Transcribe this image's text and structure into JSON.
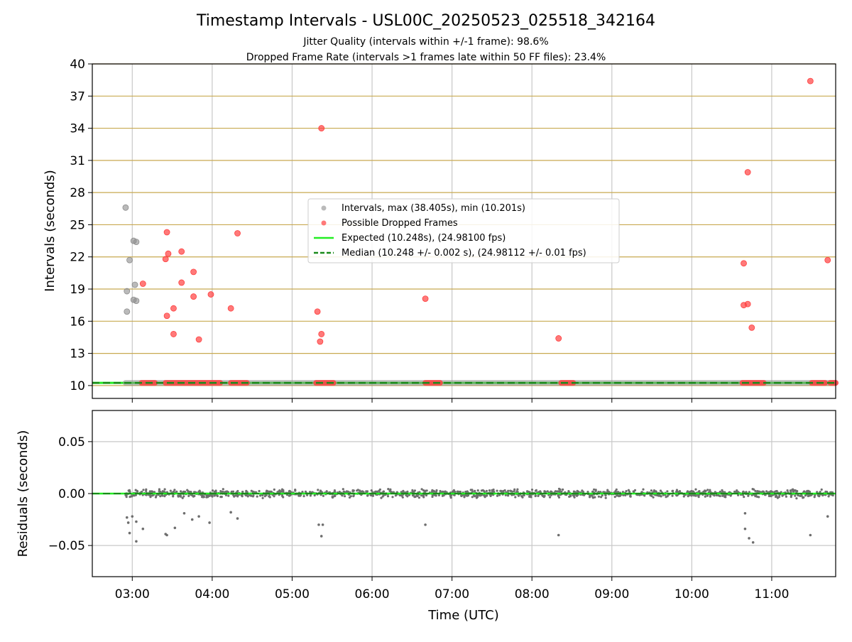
{
  "figure": {
    "title": "Timestamp Intervals - USL00C_20250523_025518_342164",
    "subtitle_1": "Jitter Quality (intervals within +/-1 frame): 98.6%",
    "subtitle_2": "Dropped Frame Rate (intervals >1 frames late within 50 FF files): 23.4%"
  },
  "colors": {
    "gray_points": "#8c8c8c",
    "red_points": "#ff4040",
    "expected_line": "#22ee22",
    "median_line": "#1a8a1a",
    "gold_grid": "#c8a951",
    "gray_grid": "#c8c8c8",
    "residual_points": "#6e6e6e"
  },
  "chart_data": [
    {
      "type": "scatter",
      "ylabel": "Intervals (seconds)",
      "xlim": [
        "02:30",
        "11:48"
      ],
      "ylim": [
        8.8,
        40
      ],
      "y_ticks": [
        "10",
        "13",
        "16",
        "19",
        "22",
        "25",
        "28",
        "31",
        "34",
        "37",
        "40"
      ],
      "grid": true,
      "legend_position": "center",
      "legend": [
        "Intervals, max (38.405s), min (10.201s)",
        "Possible Dropped Frames",
        "Expected (10.248s), (24.98100 fps)",
        "Median (10.248 +/- 0.002 s), (24.98112 +/- 0.01 fps)"
      ],
      "expected_value": 10.248,
      "median_value": 10.248,
      "series": [
        {
          "name": "Intervals, max (38.405s), min (10.201s)",
          "baseline": {
            "from": "02:55",
            "to": "11:48",
            "value": 10.25
          },
          "points": [
            {
              "x": "02:55",
              "y": 26.6
            },
            {
              "x": "02:58",
              "y": 21.7
            },
            {
              "x": "03:01",
              "y": 23.5
            },
            {
              "x": "03:03",
              "y": 23.4
            },
            {
              "x": "03:02",
              "y": 19.4
            },
            {
              "x": "02:56",
              "y": 18.8
            },
            {
              "x": "03:01",
              "y": 18.0
            },
            {
              "x": "03:03",
              "y": 17.9
            },
            {
              "x": "02:56",
              "y": 16.9
            }
          ]
        },
        {
          "name": "Possible Dropped Frames",
          "bands": [
            {
              "from": "03:07",
              "to": "03:17"
            },
            {
              "from": "03:25",
              "to": "04:06"
            },
            {
              "from": "04:14",
              "to": "04:26"
            },
            {
              "from": "05:18",
              "to": "05:31"
            },
            {
              "from": "06:40",
              "to": "06:51"
            },
            {
              "from": "08:22",
              "to": "08:31"
            },
            {
              "from": "10:38",
              "to": "10:54"
            },
            {
              "from": "11:30",
              "to": "11:40"
            },
            {
              "from": "11:44",
              "to": "11:48"
            }
          ],
          "points": [
            {
              "x": "03:08",
              "y": 19.5
            },
            {
              "x": "03:26",
              "y": 24.3
            },
            {
              "x": "03:27",
              "y": 22.3
            },
            {
              "x": "03:25",
              "y": 21.8
            },
            {
              "x": "03:26",
              "y": 16.5
            },
            {
              "x": "03:31",
              "y": 17.2
            },
            {
              "x": "03:31",
              "y": 14.8
            },
            {
              "x": "03:37",
              "y": 22.5
            },
            {
              "x": "03:37",
              "y": 19.6
            },
            {
              "x": "03:46",
              "y": 20.6
            },
            {
              "x": "03:46",
              "y": 18.3
            },
            {
              "x": "03:50",
              "y": 14.3
            },
            {
              "x": "03:59",
              "y": 18.5
            },
            {
              "x": "04:14",
              "y": 17.2
            },
            {
              "x": "04:19",
              "y": 24.2
            },
            {
              "x": "05:22",
              "y": 34.0
            },
            {
              "x": "05:19",
              "y": 16.9
            },
            {
              "x": "05:21",
              "y": 14.1
            },
            {
              "x": "05:22",
              "y": 14.8
            },
            {
              "x": "06:40",
              "y": 18.1
            },
            {
              "x": "08:20",
              "y": 14.4
            },
            {
              "x": "10:39",
              "y": 21.4
            },
            {
              "x": "10:39",
              "y": 17.5
            },
            {
              "x": "10:42",
              "y": 29.9
            },
            {
              "x": "10:42",
              "y": 17.6
            },
            {
              "x": "10:45",
              "y": 15.4
            },
            {
              "x": "11:29",
              "y": 38.4
            },
            {
              "x": "11:42",
              "y": 21.7
            }
          ]
        }
      ]
    },
    {
      "type": "scatter",
      "xlabel": "Time (UTC)",
      "ylabel": "Residuals (seconds)",
      "xlim": [
        "02:30",
        "11:48"
      ],
      "ylim": [
        -0.08,
        0.08
      ],
      "x_ticks": [
        "03:00",
        "04:00",
        "05:00",
        "06:00",
        "07:00",
        "08:00",
        "09:00",
        "10:00",
        "11:00"
      ],
      "y_ticks": [
        "0.05",
        "0.00",
        "−0.05"
      ],
      "grid": true,
      "baseline": {
        "from": "02:55",
        "to": "11:48",
        "spread": 0.005
      },
      "outliers": [
        {
          "x": "02:56",
          "y": -0.023
        },
        {
          "x": "02:57",
          "y": -0.028
        },
        {
          "x": "02:58",
          "y": -0.038
        },
        {
          "x": "03:00",
          "y": -0.022
        },
        {
          "x": "03:03",
          "y": -0.046
        },
        {
          "x": "03:03",
          "y": -0.027
        },
        {
          "x": "03:08",
          "y": -0.034
        },
        {
          "x": "03:25",
          "y": -0.039
        },
        {
          "x": "03:26",
          "y": -0.04
        },
        {
          "x": "03:32",
          "y": -0.033
        },
        {
          "x": "03:39",
          "y": -0.019
        },
        {
          "x": "03:45",
          "y": -0.025
        },
        {
          "x": "03:50",
          "y": -0.022
        },
        {
          "x": "03:58",
          "y": -0.028
        },
        {
          "x": "04:14",
          "y": -0.018
        },
        {
          "x": "04:19",
          "y": -0.024
        },
        {
          "x": "05:20",
          "y": -0.03
        },
        {
          "x": "05:22",
          "y": -0.041
        },
        {
          "x": "05:23",
          "y": -0.03
        },
        {
          "x": "06:40",
          "y": -0.03
        },
        {
          "x": "08:20",
          "y": -0.04
        },
        {
          "x": "10:40",
          "y": -0.019
        },
        {
          "x": "10:40",
          "y": -0.034
        },
        {
          "x": "10:43",
          "y": -0.043
        },
        {
          "x": "10:46",
          "y": -0.047
        },
        {
          "x": "11:29",
          "y": -0.04
        },
        {
          "x": "11:42",
          "y": -0.022
        }
      ]
    }
  ]
}
